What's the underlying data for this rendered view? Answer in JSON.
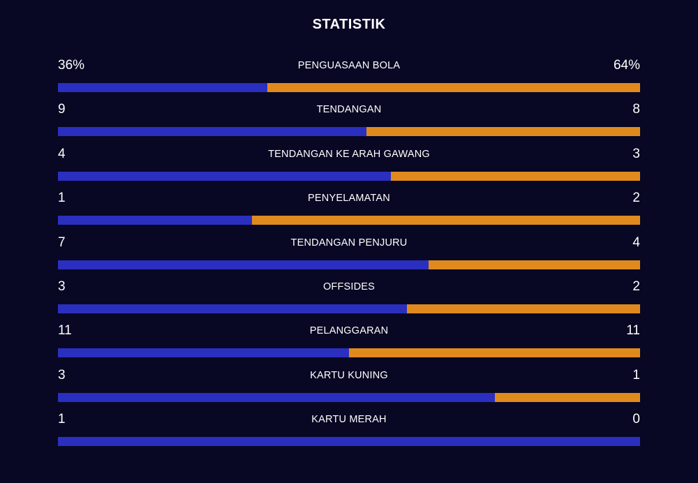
{
  "title": "STATISTIK",
  "colors": {
    "background": "#080824",
    "home": "#2a2fc0",
    "away": "#e08a1e"
  },
  "stats": [
    {
      "label": "PENGUASAAN BOLA",
      "home": "36%",
      "away": "64%",
      "home_share": 0.36
    },
    {
      "label": "TENDANGAN",
      "home": "9",
      "away": "8",
      "home_share": 0.5294
    },
    {
      "label": "TENDANGAN KE ARAH GAWANG",
      "home": "4",
      "away": "3",
      "home_share": 0.5714
    },
    {
      "label": "PENYELAMATAN",
      "home": "1",
      "away": "2",
      "home_share": 0.3333
    },
    {
      "label": "TENDANGAN PENJURU",
      "home": "7",
      "away": "4",
      "home_share": 0.6364
    },
    {
      "label": "OFFSIDES",
      "home": "3",
      "away": "2",
      "home_share": 0.6
    },
    {
      "label": "PELANGGARAN",
      "home": "11",
      "away": "11",
      "home_share": 0.5
    },
    {
      "label": "KARTU KUNING",
      "home": "3",
      "away": "1",
      "home_share": 0.75
    },
    {
      "label": "KARTU MERAH",
      "home": "1",
      "away": "0",
      "home_share": 1.0
    }
  ]
}
